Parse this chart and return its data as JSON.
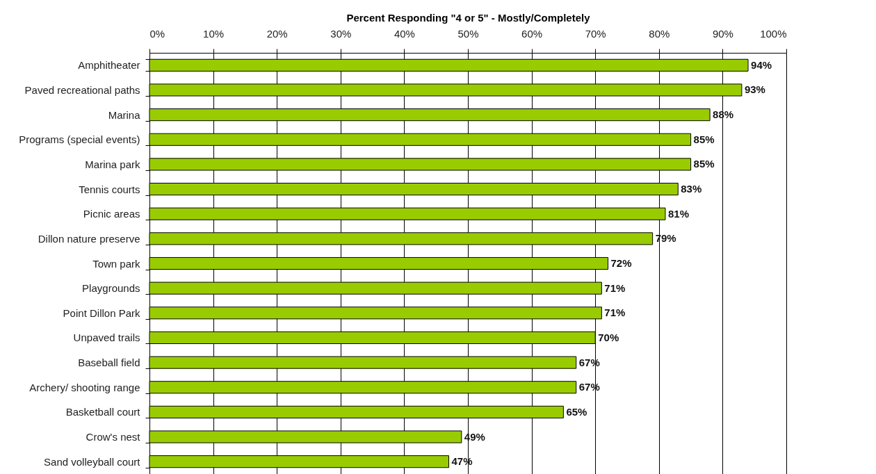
{
  "chart_data": {
    "type": "bar",
    "orientation": "horizontal",
    "xlabel": "Percent Responding \"4 or 5\" - Mostly/Completely",
    "categories": [
      "Amphitheater",
      "Paved recreational paths",
      "Marina",
      "Programs (special events)",
      "Marina park",
      "Tennis courts",
      "Picnic areas",
      "Dillon nature preserve",
      "Town park",
      "Playgrounds",
      "Point Dillon Park",
      "Unpaved trails",
      "Baseball field",
      "Archery/ shooting range",
      "Basketball court",
      "Crow's nest",
      "Sand volleyball court"
    ],
    "values": [
      94,
      93,
      88,
      85,
      85,
      83,
      81,
      79,
      72,
      71,
      71,
      70,
      67,
      67,
      65,
      49,
      47
    ],
    "value_labels": [
      "94%",
      "93%",
      "88%",
      "85%",
      "85%",
      "83%",
      "81%",
      "79%",
      "72%",
      "71%",
      "71%",
      "70%",
      "67%",
      "67%",
      "65%",
      "49%",
      "47%"
    ],
    "color": "#99cc00",
    "xlim": [
      0,
      100
    ],
    "xticks": [
      {
        "value": 0,
        "label": "0%"
      },
      {
        "value": 10,
        "label": "10%"
      },
      {
        "value": 20,
        "label": "20%"
      },
      {
        "value": 30,
        "label": "30%"
      },
      {
        "value": 40,
        "label": "40%"
      },
      {
        "value": 50,
        "label": "50%"
      },
      {
        "value": 60,
        "label": "60%"
      },
      {
        "value": 70,
        "label": "70%"
      },
      {
        "value": 80,
        "label": "80%"
      },
      {
        "value": 90,
        "label": "90%"
      },
      {
        "value": 100,
        "label": "100%"
      }
    ],
    "grid": "x"
  }
}
